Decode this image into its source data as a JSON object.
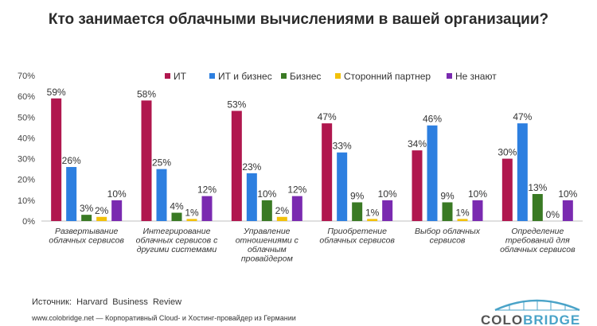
{
  "title": "Кто занимается облачными вычислениями в вашей организации?",
  "source": "Источник:  Harvard  Business  Review",
  "footer": "www.colobridge.net — Корпоративный Cloud- и Хостинг-провайдер из Германии",
  "logo": {
    "part1": "COLO",
    "part2": "BRIDGE"
  },
  "colors": [
    "#b0174e",
    "#2d7fe0",
    "#3a7a24",
    "#f2c10a",
    "#7a2ab0"
  ],
  "chart_data": {
    "type": "bar",
    "title": "Кто занимается облачными вычислениями в вашей организации?",
    "ylim": [
      0,
      70
    ],
    "y_ticks": [
      "0%",
      "10%",
      "20%",
      "30%",
      "40%",
      "50%",
      "60%",
      "70%"
    ],
    "grid": false,
    "legend_position": "top-right",
    "categories": [
      [
        "Развертывание",
        "облачных сервисов"
      ],
      [
        "Интегрирование",
        "облачных сервисов с",
        "другими системами"
      ],
      [
        "Управление",
        "отношениями с",
        "облачным",
        "провайдером"
      ],
      [
        "Приобретение",
        "облачных сервисов"
      ],
      [
        "Выбор облачных",
        "сервисов"
      ],
      [
        "Определение",
        "требований для",
        "облачных сервисов"
      ]
    ],
    "series": [
      {
        "name": "ИТ",
        "values": [
          59,
          58,
          53,
          47,
          34,
          30
        ]
      },
      {
        "name": "ИТ и бизнес",
        "values": [
          26,
          25,
          23,
          33,
          46,
          47
        ]
      },
      {
        "name": "Бизнес",
        "values": [
          3,
          4,
          10,
          9,
          9,
          13
        ]
      },
      {
        "name": "Сторонний партнер",
        "values": [
          2,
          1,
          2,
          1,
          1,
          0
        ]
      },
      {
        "name": "Не знают",
        "values": [
          10,
          12,
          12,
          10,
          10,
          10
        ]
      }
    ]
  }
}
